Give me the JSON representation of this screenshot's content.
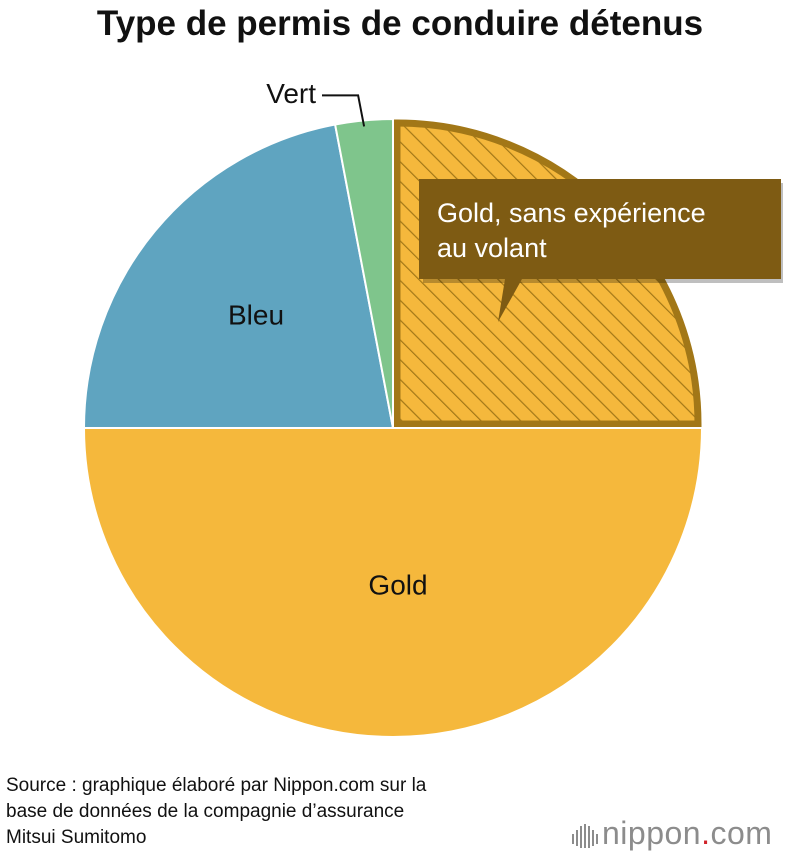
{
  "colors": {
    "gold": "#F5B83C",
    "gold_hatched_outline": "#A27717",
    "blue": "#5FA4C0",
    "green": "#7FC58C",
    "callout_bg": "#7E5B13",
    "logo_gray": "#8C8C8C",
    "logo_accent": "#D0232A"
  },
  "chart_data": {
    "type": "pie",
    "title": "Type de permis de conduire détenus",
    "slices": [
      {
        "label": "Gold, sans expérience au volant",
        "value": 25,
        "color": "#F5B83C",
        "hatched": true,
        "callout": [
          "Gold, sans expérience",
          "au volant"
        ]
      },
      {
        "label": "Gold",
        "value": 50,
        "color": "#F5B83C",
        "hatched": false
      },
      {
        "label": "Bleu",
        "value": 22,
        "color": "#5FA4C0",
        "hatched": false
      },
      {
        "label": "Vert",
        "value": 3,
        "color": "#7FC58C",
        "hatched": false,
        "leader_line": true
      }
    ]
  },
  "footer": {
    "source_lines": [
      "Source : graphique élaboré par Nippon.com sur la",
      "base de données de la compagnie d’assurance",
      "Mitsui Sumitomo"
    ],
    "logo_main": "nippon",
    "logo_dot": ".",
    "logo_tld": "com",
    "logo_icon": "nippon-bars-icon"
  }
}
